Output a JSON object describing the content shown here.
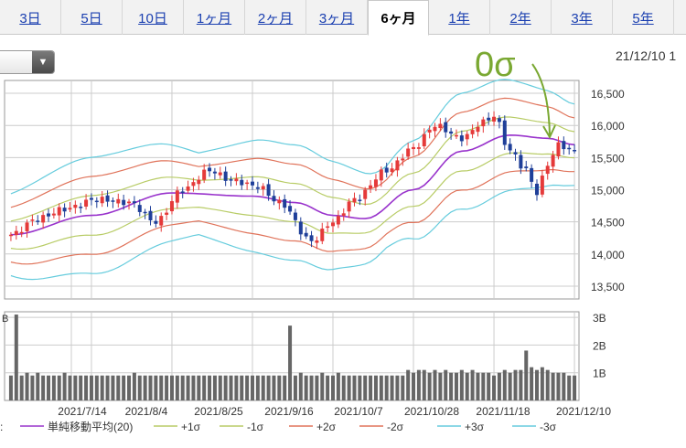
{
  "tabs": [
    {
      "label": "3日",
      "active": false
    },
    {
      "label": "5日",
      "active": false
    },
    {
      "label": "10日",
      "active": false
    },
    {
      "label": "1ヶ月",
      "active": false
    },
    {
      "label": "2ヶ月",
      "active": false
    },
    {
      "label": "3ヶ月",
      "active": false
    },
    {
      "label": "6ヶ月",
      "active": true
    },
    {
      "label": "1年",
      "active": false
    },
    {
      "label": "2年",
      "active": false
    },
    {
      "label": "3年",
      "active": false
    },
    {
      "label": "5年",
      "active": false
    }
  ],
  "datetime": "21/12/10 1",
  "annotation": {
    "text": "0σ",
    "color": "#7aa832"
  },
  "chart_data": {
    "type": "candlestick",
    "price_ticks": [
      "13,500",
      "14,000",
      "14,500",
      "15,000",
      "15,500",
      "16,000",
      "16,500"
    ],
    "price_tick_values": [
      13500,
      14000,
      14500,
      15000,
      15500,
      16000,
      16500
    ],
    "ylim": [
      13300,
      16700
    ],
    "volume_ticks": [
      "1B",
      "2B",
      "3B"
    ],
    "volume_tick_values": [
      1,
      2,
      3
    ],
    "volume_ylim": [
      0,
      3.2
    ],
    "date_labels": [
      "2021/7/14",
      "2021/8/4",
      "2021/8/25",
      "2021/9/16",
      "2021/10/7",
      "2021/10/28",
      "2021/11/18",
      "2021/12/10"
    ],
    "band_anchors": [
      {
        "x": 0,
        "mid": 14300
      },
      {
        "x": 15,
        "mid": 14600
      },
      {
        "x": 30,
        "mid": 14950
      },
      {
        "x": 45,
        "mid": 14900
      },
      {
        "x": 53,
        "mid": 14800
      },
      {
        "x": 60,
        "mid": 14600
      },
      {
        "x": 66,
        "mid": 14550
      },
      {
        "x": 75,
        "mid": 15000
      },
      {
        "x": 84,
        "mid": 15600
      },
      {
        "x": 93,
        "mid": 15850
      },
      {
        "x": 100,
        "mid": 15800
      },
      {
        "x": 105,
        "mid": 15700
      }
    ],
    "sigma": 250,
    "close_anchors": [
      {
        "x": 0,
        "v": 14300
      },
      {
        "x": 5,
        "v": 14550
      },
      {
        "x": 10,
        "v": 14700
      },
      {
        "x": 16,
        "v": 14850
      },
      {
        "x": 22,
        "v": 14800
      },
      {
        "x": 27,
        "v": 14500
      },
      {
        "x": 32,
        "v": 15000
      },
      {
        "x": 37,
        "v": 15300
      },
      {
        "x": 41,
        "v": 15150
      },
      {
        "x": 46,
        "v": 15050
      },
      {
        "x": 50,
        "v": 14800
      },
      {
        "x": 56,
        "v": 14200
      },
      {
        "x": 60,
        "v": 14500
      },
      {
        "x": 64,
        "v": 14850
      },
      {
        "x": 70,
        "v": 15300
      },
      {
        "x": 75,
        "v": 15650
      },
      {
        "x": 79,
        "v": 16000
      },
      {
        "x": 84,
        "v": 15800
      },
      {
        "x": 88,
        "v": 16050
      },
      {
        "x": 90,
        "v": 16150
      },
      {
        "x": 93,
        "v": 15600
      },
      {
        "x": 96,
        "v": 15300
      },
      {
        "x": 98,
        "v": 14950
      },
      {
        "x": 100,
        "v": 15400
      },
      {
        "x": 102,
        "v": 15700
      },
      {
        "x": 105,
        "v": 15600
      }
    ],
    "volumes": [
      0.9,
      3.1,
      0.9,
      1.0,
      0.9,
      1.0,
      0.9,
      0.9,
      0.9,
      0.9,
      1.0,
      0.9,
      0.9,
      0.9,
      0.9,
      0.9,
      0.9,
      0.9,
      0.9,
      0.9,
      0.9,
      0.9,
      0.9,
      1.0,
      0.9,
      0.9,
      0.9,
      0.9,
      0.9,
      0.9,
      0.9,
      0.9,
      0.9,
      0.9,
      0.9,
      0.9,
      0.9,
      0.9,
      0.9,
      0.9,
      0.9,
      0.9,
      0.9,
      0.9,
      0.9,
      0.9,
      0.9,
      0.9,
      0.9,
      0.9,
      0.9,
      0.9,
      2.7,
      0.9,
      1.0,
      0.9,
      0.9,
      0.9,
      1.0,
      0.9,
      0.9,
      1.0,
      0.9,
      0.9,
      0.9,
      0.9,
      0.9,
      0.9,
      0.9,
      0.9,
      0.9,
      0.9,
      0.9,
      0.9,
      1.1,
      1.0,
      1.1,
      1.1,
      1.0,
      1.1,
      1.0,
      1.1,
      1.0,
      1.0,
      1.1,
      1.0,
      1.1,
      1.0,
      1.0,
      1.0,
      0.9,
      1.0,
      1.1,
      1.0,
      1.1,
      1.1,
      1.8,
      1.2,
      1.1,
      1.2,
      1.1,
      1.0,
      1.0,
      1.0,
      0.9,
      0.9
    ],
    "legend": [
      {
        "label": "単純移動平均(20)",
        "color": "#9933cc"
      },
      {
        "label": "+1σ",
        "color": "#b8cc66"
      },
      {
        "label": "-1σ",
        "color": "#b8cc66"
      },
      {
        "label": "+2σ",
        "color": "#e0735a"
      },
      {
        "label": "-2σ",
        "color": "#e0735a"
      },
      {
        "label": "+3σ",
        "color": "#66ccdd"
      },
      {
        "label": "-3σ",
        "color": "#66ccdd"
      }
    ],
    "legend_prefix": ":",
    "colors": {
      "up": "#e53a3a",
      "down": "#1f3f99",
      "sma": "#9933cc",
      "s1": "#b8cc66",
      "s2": "#e0735a",
      "s3": "#66ccdd",
      "volume": "#666666",
      "grid": "#cccccc"
    }
  }
}
